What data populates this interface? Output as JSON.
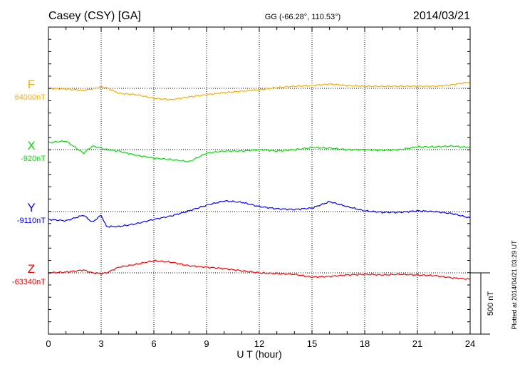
{
  "chart_data": {
    "type": "line",
    "title": "Casey (CSY)  [GA]",
    "subtitle": "GG (-66.28°, 110.53°)",
    "date": "2014/03/21",
    "xlabel": "U T (hour)",
    "xlim": [
      0,
      24
    ],
    "xticks": [
      "0",
      "3",
      "6",
      "9",
      "12",
      "15",
      "18",
      "21",
      "24"
    ],
    "grid": true,
    "scale_label": "500 nT",
    "scale_nT": 500,
    "footer": "Plotted at 2014/04/21 03:29 UT",
    "x": [
      0,
      1,
      2,
      2.5,
      3,
      3.3,
      4,
      5,
      6,
      7,
      8,
      9,
      10,
      11,
      12,
      13,
      14,
      15,
      16,
      17,
      18,
      19,
      20,
      21,
      22,
      23,
      24
    ],
    "series": [
      {
        "name": "F",
        "baseline_label": "64000nT",
        "color": "#ffaa00",
        "values": [
          0,
          -6,
          -17,
          -5,
          12,
          5,
          -40,
          -52,
          -81,
          -93,
          -70,
          -52,
          -35,
          -23,
          -12,
          6,
          17,
          23,
          35,
          23,
          17,
          17,
          17,
          17,
          17,
          29,
          52
        ]
      },
      {
        "name": "X",
        "baseline_label": "-920nT",
        "color": "#00e000",
        "values": [
          58,
          70,
          -29,
          29,
          12,
          0,
          -12,
          -46,
          -70,
          -81,
          -99,
          -29,
          -12,
          -12,
          0,
          -12,
          0,
          17,
          12,
          0,
          0,
          -6,
          0,
          23,
          23,
          29,
          17
        ]
      },
      {
        "name": "Y",
        "baseline_label": "-9110nT",
        "color": "#0000ff",
        "values": [
          -64,
          -75,
          -29,
          -87,
          -29,
          -122,
          -122,
          -99,
          -64,
          -35,
          6,
          52,
          87,
          76,
          41,
          23,
          17,
          29,
          81,
          41,
          6,
          -6,
          -6,
          6,
          0,
          -17,
          -52
        ]
      },
      {
        "name": "Z",
        "baseline_label": "-63340nT",
        "color": "#ff0000",
        "values": [
          0,
          6,
          23,
          0,
          -6,
          0,
          46,
          70,
          99,
          87,
          58,
          46,
          35,
          17,
          0,
          -6,
          -12,
          -35,
          -29,
          -17,
          -12,
          -17,
          -12,
          -17,
          -23,
          -41,
          -52
        ]
      }
    ]
  }
}
